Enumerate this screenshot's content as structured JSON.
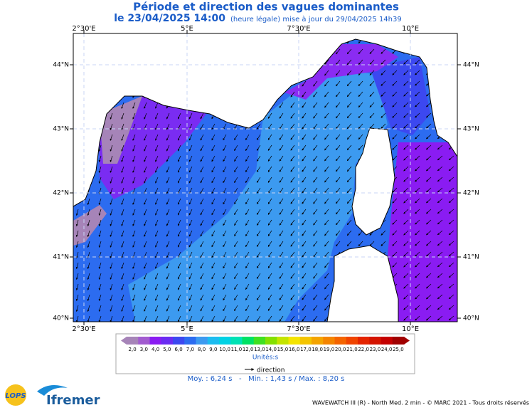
{
  "header": {
    "title": "Période et direction des vagues dominantes",
    "datetime": "le 23/04/2025 14:00",
    "note": "(heure légale) mise à jour du 29/04/2025 14h39"
  },
  "map": {
    "lon_labels": [
      "2°30'E",
      "5°E",
      "7°30'E",
      "10°E"
    ],
    "lat_labels": [
      "44°N",
      "43°N",
      "42°N",
      "41°N",
      "40°N"
    ]
  },
  "legend": {
    "labels": [
      "2,0",
      "3,0",
      "4,0",
      "5,0",
      "6,0",
      "7,0",
      "8,0",
      "9,0",
      "10,0",
      "11,0",
      "12,0",
      "13,0",
      "14,0",
      "15,0",
      "16,0",
      "17,0",
      "18,0",
      "19,0",
      "20,0",
      "21,0",
      "22,0",
      "23,0",
      "24,0",
      "25,0"
    ],
    "colors": [
      "#a684b8",
      "#a25cd0",
      "#8a1cf2",
      "#6a2cf2",
      "#3c48f0",
      "#2c6cf0",
      "#3c9af0",
      "#1cbcf0",
      "#00d2e4",
      "#00e2b4",
      "#00e264",
      "#40e020",
      "#84e000",
      "#c4e400",
      "#f4e400",
      "#f4c400",
      "#f4a400",
      "#f48400",
      "#f46400",
      "#f04400",
      "#e42400",
      "#d41400",
      "#c40000",
      "#a00000"
    ],
    "unit": "Unités:s",
    "arrow_label": "direction"
  },
  "stats": "Moy. : 6,24 s   -   Min. : 1,43 s / Max. : 8,20 s",
  "footer": "WAVEWATCH III (R) - North Med. 2 min - © MARC 2021 - Tous droits réservés",
  "logos": {
    "lops": "LOPS",
    "ifremer": "Ifremer"
  }
}
